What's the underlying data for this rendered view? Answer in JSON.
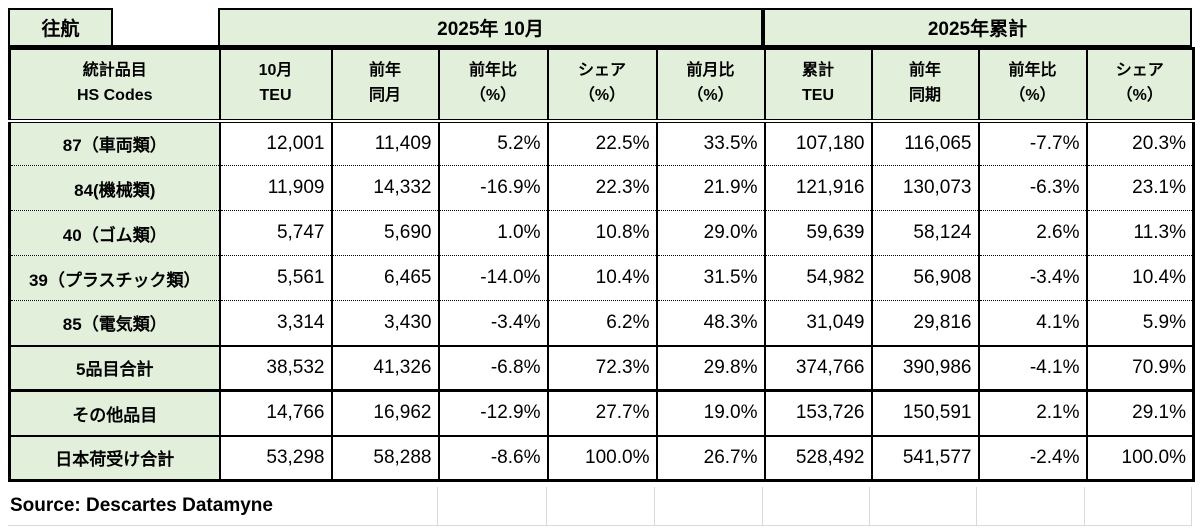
{
  "meta": {
    "direction_label": "往航",
    "period_month": "2025年 10月",
    "period_ytd": "2025年累計",
    "source": "Source: Descartes Datamyne"
  },
  "colors": {
    "header_bg": "#e2efda",
    "border": "#000000",
    "faint_grid": "#d9d9d9",
    "text": "#000000"
  },
  "headers": [
    {
      "line1": "統計品目",
      "line2": "HS Codes"
    },
    {
      "line1": "10月",
      "line2": "TEU"
    },
    {
      "line1": "前年",
      "line2": "同月"
    },
    {
      "line1": "前年比",
      "line2": "（%）"
    },
    {
      "line1": "シェア",
      "line2": "（%）"
    },
    {
      "line1": "前月比",
      "line2": "（%）"
    },
    {
      "line1": "累計",
      "line2": "TEU"
    },
    {
      "line1": "前年",
      "line2": "同期"
    },
    {
      "line1": "前年比",
      "line2": "（%）"
    },
    {
      "line1": "シェア",
      "line2": "（%）"
    }
  ],
  "rows": [
    {
      "label": "87（車両類）",
      "values": [
        "12,001",
        "11,409",
        "5.2%",
        "22.5%",
        "33.5%",
        "107,180",
        "116,065",
        "-7.7%",
        "20.3%"
      ]
    },
    {
      "label": "84(機械類)",
      "values": [
        "11,909",
        "14,332",
        "-16.9%",
        "22.3%",
        "21.9%",
        "121,916",
        "130,073",
        "-6.3%",
        "23.1%"
      ]
    },
    {
      "label": "40（ゴム類）",
      "values": [
        "5,747",
        "5,690",
        "1.0%",
        "10.8%",
        "29.0%",
        "59,639",
        "58,124",
        "2.6%",
        "11.3%"
      ]
    },
    {
      "label": "39（プラスチック類）",
      "values": [
        "5,561",
        "6,465",
        "-14.0%",
        "10.4%",
        "31.5%",
        "54,982",
        "56,908",
        "-3.4%",
        "10.4%"
      ]
    },
    {
      "label": "85（電気類）",
      "values": [
        "3,314",
        "3,430",
        "-3.4%",
        "6.2%",
        "48.3%",
        "31,049",
        "29,816",
        "4.1%",
        "5.9%"
      ]
    },
    {
      "label": "5品目合計",
      "values": [
        "38,532",
        "41,326",
        "-6.8%",
        "72.3%",
        "29.8%",
        "374,766",
        "390,986",
        "-4.1%",
        "70.9%"
      ]
    },
    {
      "label": "その他品目",
      "values": [
        "14,766",
        "16,962",
        "-12.9%",
        "27.7%",
        "19.0%",
        "153,726",
        "150,591",
        "2.1%",
        "29.1%"
      ]
    },
    {
      "label": "日本荷受け合計",
      "values": [
        "53,298",
        "58,288",
        "-8.6%",
        "100.0%",
        "26.7%",
        "528,492",
        "541,577",
        "-2.4%",
        "100.0%"
      ]
    }
  ]
}
